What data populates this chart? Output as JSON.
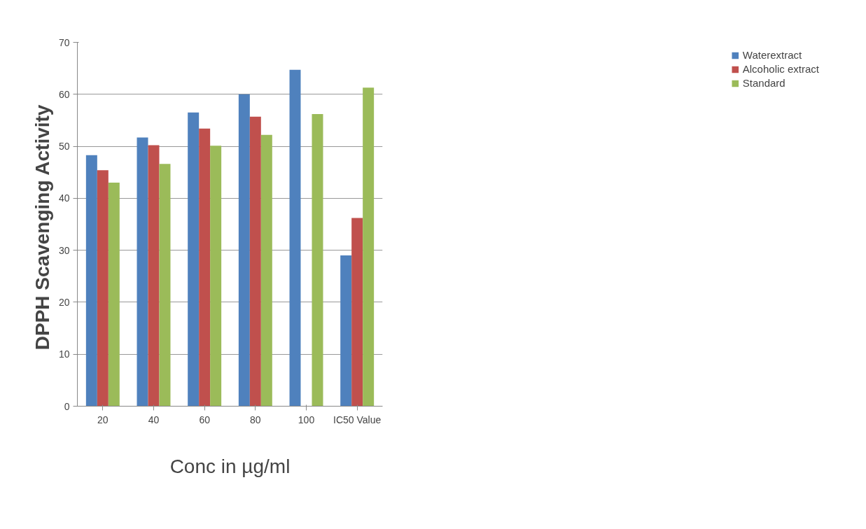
{
  "chart_data": {
    "type": "bar",
    "xlabel": "Conc in µg/ml",
    "ylabel": "DPPH  Scavenging Activity",
    "categories": [
      "20",
      "40",
      "60",
      "80",
      "100",
      "IC50 Value"
    ],
    "series": [
      {
        "name": "Waterextract",
        "color": "#4f81bd",
        "values": [
          48.3,
          51.7,
          56.5,
          60.0,
          64.7,
          29.0
        ]
      },
      {
        "name": "Alcoholic extract",
        "color": "#c0504d",
        "values": [
          45.4,
          50.2,
          53.4,
          55.7,
          null,
          36.2
        ]
      },
      {
        "name": "Standard",
        "color": "#9bbb59",
        "values": [
          43.0,
          46.6,
          50.1,
          52.2,
          56.2,
          61.3
        ]
      }
    ],
    "ylim": [
      0,
      70
    ],
    "yticks": [
      0,
      10,
      20,
      30,
      40,
      50,
      60,
      70
    ],
    "grid": "y",
    "legend": "right"
  }
}
